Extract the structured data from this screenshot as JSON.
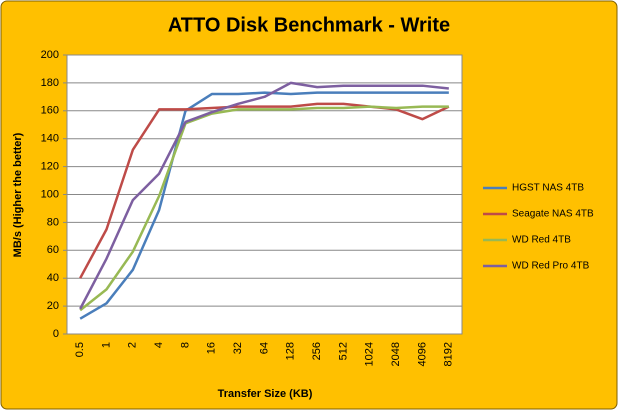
{
  "chart_data": {
    "type": "line",
    "title": "ATTO Disk Benchmark - Write",
    "x_label": "Transfer Size (KB)",
    "y_label": "MB/s (Higher the better)",
    "categories": [
      "0.5",
      "1",
      "2",
      "4",
      "8",
      "16",
      "32",
      "64",
      "128",
      "256",
      "512",
      "1024",
      "2048",
      "4096",
      "8192"
    ],
    "series": [
      {
        "name": "HGST NAS 4TB",
        "color": "#4a7ebb",
        "values": [
          11,
          22,
          46,
          89,
          160,
          172,
          172,
          173,
          172,
          173,
          173,
          173,
          173,
          173,
          173
        ]
      },
      {
        "name": "Seagate NAS 4TB",
        "color": "#be4b48",
        "values": [
          40,
          75,
          132,
          161,
          161,
          162,
          163,
          163,
          163,
          165,
          165,
          163,
          161,
          154,
          163
        ]
      },
      {
        "name": "WD Red 4TB",
        "color": "#98b954",
        "values": [
          17,
          32,
          59,
          99,
          151,
          158,
          161,
          161,
          161,
          162,
          162,
          163,
          162,
          163,
          163
        ]
      },
      {
        "name": "WD Red Pro 4TB",
        "color": "#7d5fa0",
        "values": [
          18,
          54,
          96,
          115,
          152,
          159,
          165,
          170,
          180,
          177,
          178,
          178,
          178,
          178,
          176
        ]
      }
    ],
    "ylim": [
      0,
      200
    ],
    "yticks": [
      0,
      20,
      40,
      60,
      80,
      100,
      120,
      140,
      160,
      180,
      200
    ],
    "grid": true,
    "legend": "right"
  }
}
